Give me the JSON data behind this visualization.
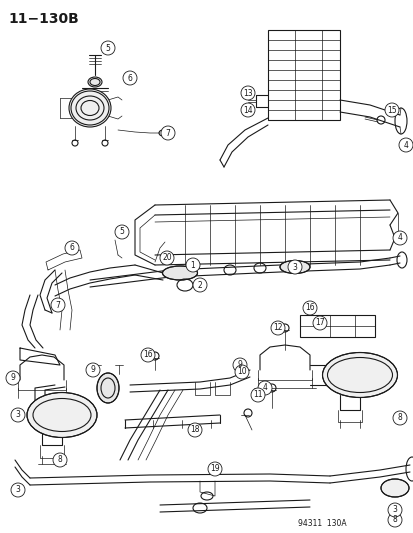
{
  "title": "11−130B",
  "subtitle_code": "94311  130A",
  "bg_color": "#ffffff",
  "line_color": "#1a1a1a",
  "title_fontsize": 10,
  "fig_width": 4.14,
  "fig_height": 5.33,
  "dpi": 100
}
